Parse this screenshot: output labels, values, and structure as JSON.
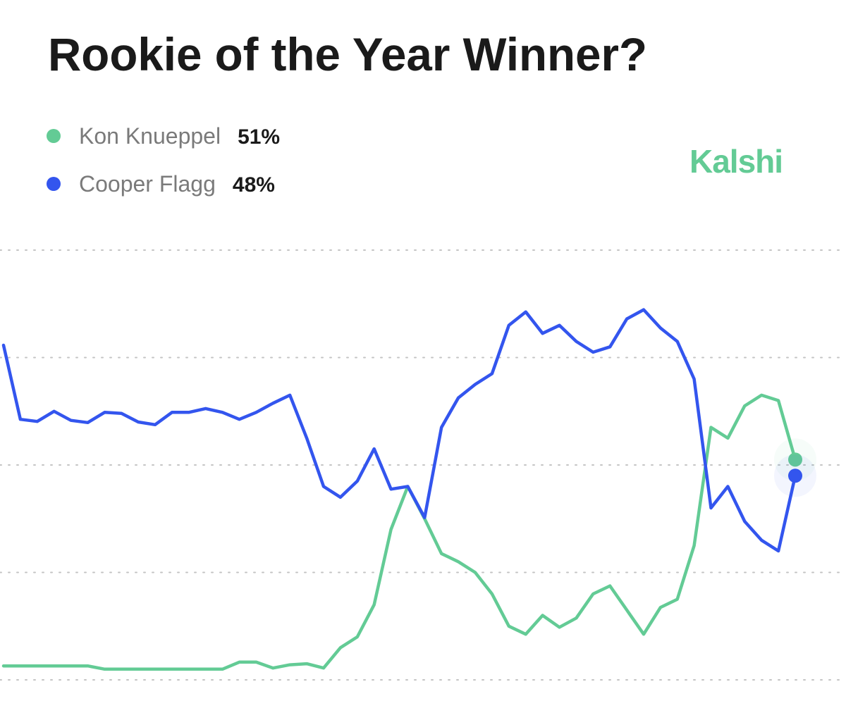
{
  "chart_data": {
    "type": "line",
    "title": "Rookie of the Year Winner?",
    "brand": "Kalshi",
    "ylim": [
      10,
      90
    ],
    "yticks": [
      10,
      30,
      50,
      70,
      90
    ],
    "grid": true,
    "series": [
      {
        "name": "Kon Knueppel",
        "color": "#63cb95",
        "label": "51%",
        "values": [
          12.6,
          12.6,
          12.6,
          12.6,
          12.6,
          12.6,
          12.0,
          12.0,
          12.0,
          12.0,
          12.0,
          12.0,
          12.0,
          12.0,
          13.3,
          13.3,
          12.2,
          12.8,
          13.0,
          12.2,
          16,
          18,
          24,
          38,
          46,
          40,
          33.5,
          32,
          30,
          26,
          20,
          18.5,
          22,
          19.8,
          21.5,
          26,
          27.5,
          23,
          18.5,
          23.5,
          25,
          35,
          57,
          55,
          61,
          63,
          62,
          51
        ]
      },
      {
        "name": "Cooper Flagg",
        "color": "#3355ee",
        "label": "48%",
        "values": [
          72.3,
          58.5,
          58.1,
          60,
          58.3,
          57.9,
          59.8,
          59.6,
          58,
          57.5,
          59.8,
          59.8,
          60.5,
          59.8,
          58.5,
          59.8,
          61.5,
          63,
          55,
          46,
          44,
          47,
          53,
          45.5,
          46,
          40.2,
          57,
          62.5,
          65,
          67,
          76,
          78.5,
          74.5,
          76,
          73,
          71,
          72,
          77.2,
          78.9,
          75.5,
          73,
          66,
          42,
          46,
          39.5,
          36,
          34,
          48
        ]
      }
    ]
  }
}
